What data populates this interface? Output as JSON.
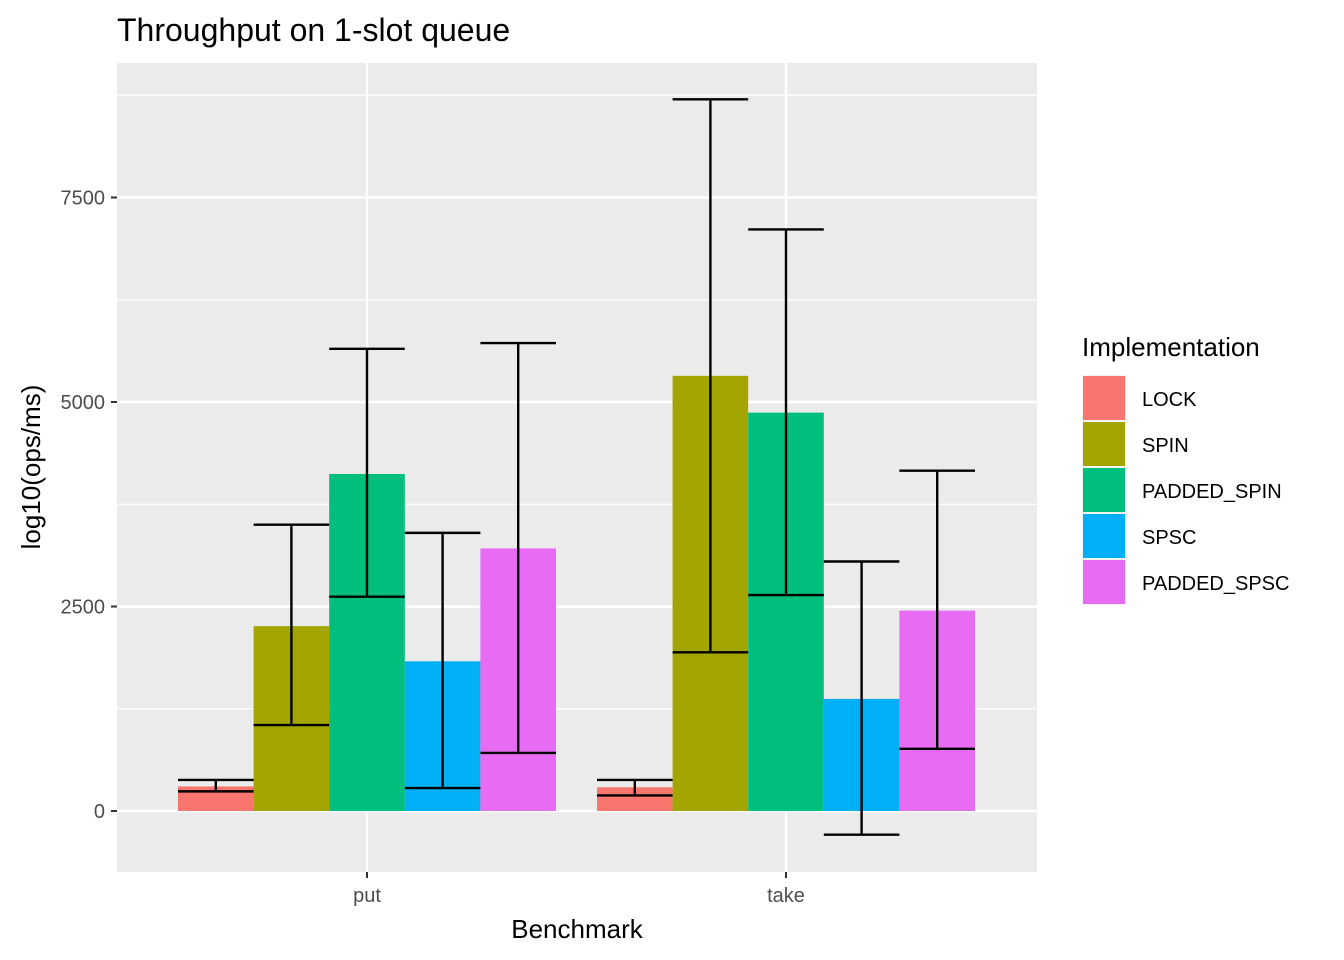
{
  "chart_data": {
    "type": "bar",
    "title": "Throughput on 1-slot queue",
    "xlabel": "Benchmark",
    "ylabel": "log10(ops/ms)",
    "categories": [
      "put",
      "take"
    ],
    "yticks": [
      0,
      2500,
      5000,
      7500
    ],
    "ytick_labels": [
      "0",
      "2500",
      "5000",
      "7500"
    ],
    "ylim": [
      -750,
      9000
    ],
    "grid": true,
    "legend": {
      "title": "Implementation",
      "position": "right"
    },
    "series": [
      {
        "name": "LOCK",
        "color": "#F8766D",
        "values": [
          300,
          290
        ],
        "error_low": [
          240,
          190
        ],
        "error_high": [
          380,
          380
        ]
      },
      {
        "name": "SPIN",
        "color": "#A3A500",
        "values": [
          2260,
          5320
        ],
        "error_low": [
          1050,
          1940
        ],
        "error_high": [
          3500,
          8700
        ]
      },
      {
        "name": "PADDED_SPIN",
        "color": "#00BF7D",
        "values": [
          4120,
          4870
        ],
        "error_low": [
          2620,
          2640
        ],
        "error_high": [
          5650,
          7110
        ]
      },
      {
        "name": "SPSC",
        "color": "#00B0F6",
        "values": [
          1830,
          1370
        ],
        "error_low": [
          280,
          -290
        ],
        "error_high": [
          3400,
          3050
        ]
      },
      {
        "name": "PADDED_SPSC",
        "color": "#E76BF3",
        "values": [
          3210,
          2450
        ],
        "error_low": [
          710,
          760
        ],
        "error_high": [
          5720,
          4160
        ]
      }
    ]
  }
}
